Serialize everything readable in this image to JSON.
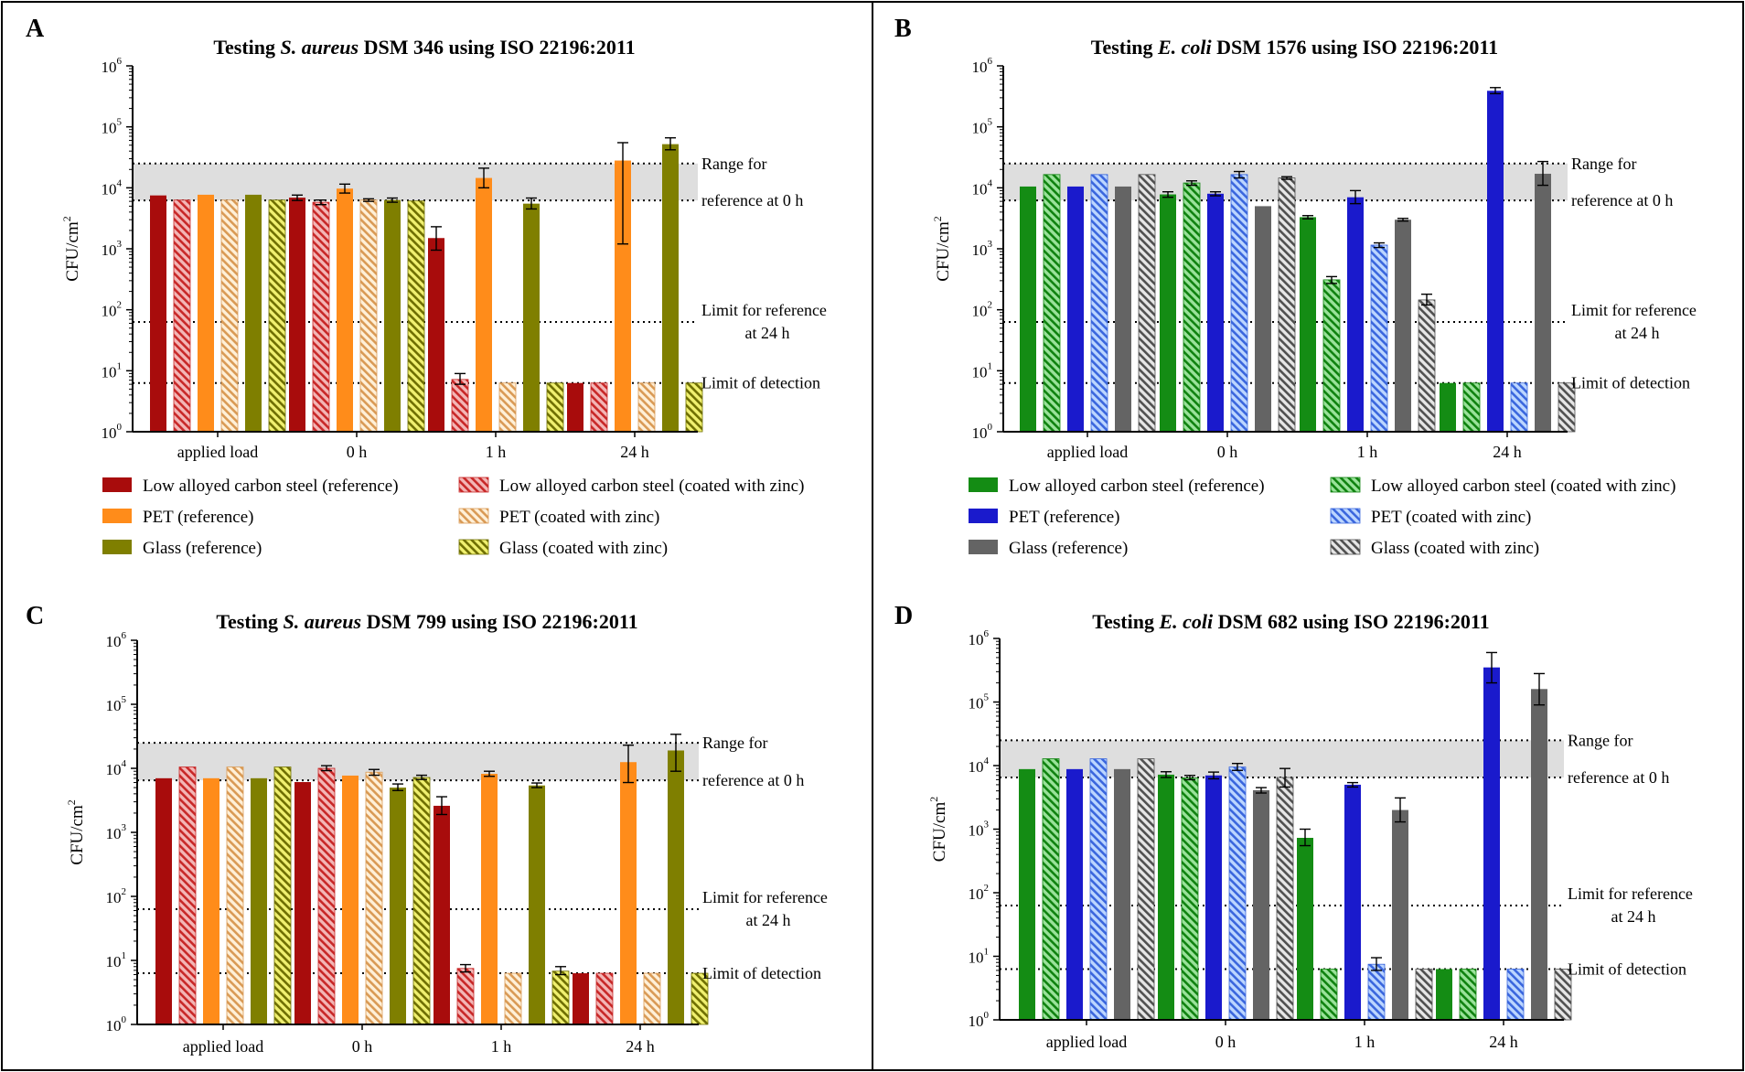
{
  "figure": {
    "colors": {
      "dark_red": "#a80c0c",
      "orange": "#ff8c1a",
      "olive": "#7f7f00",
      "green": "#148c14",
      "blue": "#1a1acc",
      "gray": "#646464",
      "range_band": "#dedede",
      "hatch_red_bg": "#f3b6b6",
      "hatch_red_fg": "#c82828",
      "hatch_orange_bg": "#fff0d8",
      "hatch_orange_fg": "#d99a55",
      "hatch_olive_bg": "#f0f070",
      "hatch_olive_fg": "#6e6e00",
      "hatch_green_bg": "#9ae29a",
      "hatch_green_fg": "#0f820f",
      "hatch_blue_bg": "#bcd6ff",
      "hatch_blue_fg": "#3a66dd",
      "hatch_gray_bg": "#e6e6e6",
      "hatch_gray_fg": "#505050"
    }
  },
  "chart_data": [
    {
      "panel_label": "A",
      "type": "bar",
      "y_scale": "log",
      "title_prefix": "Testing ",
      "title_organism": "S. aureus",
      "title_suffix": " DSM 346 using ISO 22196:2011",
      "ylabel_main": "CFU/cm",
      "ylabel_sup": "2",
      "ylim": [
        1,
        1000000
      ],
      "y_ticks": [
        {
          "base": "10",
          "exp": "0"
        },
        {
          "base": "10",
          "exp": "1"
        },
        {
          "base": "10",
          "exp": "2"
        },
        {
          "base": "10",
          "exp": "3"
        },
        {
          "base": "10",
          "exp": "4"
        },
        {
          "base": "10",
          "exp": "5"
        },
        {
          "base": "10",
          "exp": "6"
        }
      ],
      "categories": [
        "applied load",
        "0 h",
        "1 h",
        "24 h"
      ],
      "reference_range": [
        6200,
        25000
      ],
      "reference_range_label_1": "Range for",
      "reference_range_label_2": "reference at 0 h",
      "limit_reference_24h": 63,
      "limit_reference_24h_label_1": "Limit for reference",
      "limit_reference_24h_label_2": "at 24 h",
      "limit_detection": 6.3,
      "limit_detection_label": "Limit of detection",
      "series": [
        {
          "name": "Low alloyed carbon steel (reference)",
          "style": "solid",
          "color": "dark_red",
          "values": [
            7500,
            6900,
            1500,
            6.3
          ],
          "errors": [
            null,
            [
              6200,
              7600
            ],
            [
              950,
              2300
            ],
            null
          ]
        },
        {
          "name": "Low alloyed carbon steel (coated with zinc)",
          "style": "hatch",
          "color": "red",
          "values": [
            6300,
            5800,
            7.2,
            6.3
          ],
          "errors": [
            null,
            [
              5300,
              6300
            ],
            [
              6,
              9
            ],
            null
          ]
        },
        {
          "name": "PET (reference)",
          "style": "solid",
          "color": "orange",
          "values": [
            7700,
            9700,
            14500,
            28000
          ],
          "errors": [
            null,
            [
              8200,
              11500
            ],
            [
              10000,
              21000
            ],
            [
              1200,
              55000
            ]
          ]
        },
        {
          "name": "PET (coated with zinc)",
          "style": "hatch",
          "color": "orange",
          "values": [
            6300,
            6300,
            6.3,
            6.3
          ],
          "errors": [
            null,
            [
              6000,
              6600
            ],
            null,
            null
          ]
        },
        {
          "name": "Glass (reference)",
          "style": "solid",
          "color": "olive",
          "values": [
            7700,
            6300,
            5500,
            52000
          ],
          "errors": [
            null,
            [
              5800,
              6800
            ],
            [
              4500,
              6800
            ],
            [
              42000,
              66000
            ]
          ]
        },
        {
          "name": "Glass (coated with zinc)",
          "style": "hatch",
          "color": "olive",
          "values": [
            6300,
            6100,
            6.3,
            6.3
          ],
          "errors": [
            null,
            null,
            null,
            null
          ]
        }
      ]
    },
    {
      "panel_label": "B",
      "type": "bar",
      "y_scale": "log",
      "title_prefix": "Testing ",
      "title_organism": "E. coli",
      "title_suffix": " DSM 1576 using ISO 22196:2011",
      "ylabel_main": "CFU/cm",
      "ylabel_sup": "2",
      "ylim": [
        1,
        1000000
      ],
      "y_ticks": [
        {
          "base": "10",
          "exp": "0"
        },
        {
          "base": "10",
          "exp": "1"
        },
        {
          "base": "10",
          "exp": "2"
        },
        {
          "base": "10",
          "exp": "3"
        },
        {
          "base": "10",
          "exp": "4"
        },
        {
          "base": "10",
          "exp": "5"
        },
        {
          "base": "10",
          "exp": "6"
        }
      ],
      "categories": [
        "applied load",
        "0 h",
        "1 h",
        "24 h"
      ],
      "reference_range": [
        6200,
        25000
      ],
      "reference_range_label_1": "Range for",
      "reference_range_label_2": "reference at 0 h",
      "limit_reference_24h": 63,
      "limit_reference_24h_label_1": "Limit for reference",
      "limit_reference_24h_label_2": "at 24 h",
      "limit_detection": 6.3,
      "limit_detection_label": "Limit of detection",
      "series": [
        {
          "name": "Low alloyed carbon steel (reference)",
          "style": "solid",
          "color": "green",
          "values": [
            10500,
            7800,
            3300,
            6.3
          ],
          "errors": [
            null,
            [
              7000,
              8600
            ],
            [
              3100,
              3500
            ],
            null
          ]
        },
        {
          "name": "Low alloyed carbon steel (coated with zinc)",
          "style": "hatch",
          "color": "green",
          "values": [
            16500,
            12000,
            310,
            6.3
          ],
          "errors": [
            null,
            [
              11000,
              13000
            ],
            [
              270,
              350
            ],
            null
          ]
        },
        {
          "name": "PET (reference)",
          "style": "solid",
          "color": "blue",
          "values": [
            10500,
            8000,
            7000,
            390000
          ],
          "errors": [
            null,
            [
              7400,
              8600
            ],
            [
              5500,
              9000
            ],
            [
              350000,
              440000
            ]
          ]
        },
        {
          "name": "PET (coated with zinc)",
          "style": "hatch",
          "color": "blue",
          "values": [
            16500,
            16500,
            1150,
            6.3
          ],
          "errors": [
            null,
            [
              14500,
              18500
            ],
            [
              1050,
              1250
            ],
            null
          ]
        },
        {
          "name": "Glass (reference)",
          "style": "solid",
          "color": "gray",
          "values": [
            10500,
            5000,
            3000,
            17000
          ],
          "errors": [
            null,
            null,
            [
              2850,
              3150
            ],
            [
              11000,
              27000
            ]
          ]
        },
        {
          "name": "Glass (coated with zinc)",
          "style": "hatch",
          "color": "gray",
          "values": [
            16500,
            14500,
            145,
            6.3
          ],
          "errors": [
            null,
            [
              13800,
              15200
            ],
            [
              120,
              180
            ],
            null
          ]
        }
      ]
    },
    {
      "panel_label": "C",
      "type": "bar",
      "y_scale": "log",
      "title_prefix": "Testing ",
      "title_organism": "S. aureus",
      "title_suffix": " DSM 799 using ISO 22196:2011",
      "ylabel_main": "CFU/cm",
      "ylabel_sup": "2",
      "ylim": [
        1,
        1000000
      ],
      "y_ticks": [
        {
          "base": "10",
          "exp": "0"
        },
        {
          "base": "10",
          "exp": "1"
        },
        {
          "base": "10",
          "exp": "2"
        },
        {
          "base": "10",
          "exp": "3"
        },
        {
          "base": "10",
          "exp": "4"
        },
        {
          "base": "10",
          "exp": "5"
        },
        {
          "base": "10",
          "exp": "6"
        }
      ],
      "categories": [
        "applied load",
        "0 h",
        "1 h",
        "24 h"
      ],
      "reference_range": [
        6500,
        25000
      ],
      "reference_range_label_1": "Range for",
      "reference_range_label_2": "reference at 0 h",
      "limit_reference_24h": 63,
      "limit_reference_24h_label_1": "Limit for reference",
      "limit_reference_24h_label_2": "at 24 h",
      "limit_detection": 6.3,
      "limit_detection_label": "Limit of detection",
      "series": [
        {
          "name": "Low alloyed carbon steel (reference)",
          "style": "solid",
          "color": "dark_red",
          "values": [
            7000,
            6100,
            2600,
            6.3
          ],
          "errors": [
            null,
            null,
            [
              1900,
              3600
            ],
            null
          ]
        },
        {
          "name": "Low alloyed carbon steel (coated with zinc)",
          "style": "hatch",
          "color": "red",
          "values": [
            10500,
            10000,
            7.5,
            6.3
          ],
          "errors": [
            null,
            [
              9200,
              11000
            ],
            [
              6.6,
              8.6
            ],
            null
          ]
        },
        {
          "name": "PET (reference)",
          "style": "solid",
          "color": "orange",
          "values": [
            7000,
            7700,
            8200,
            12500
          ],
          "errors": [
            null,
            null,
            [
              7500,
              9000
            ],
            [
              6000,
              23000
            ]
          ]
        },
        {
          "name": "PET (coated with zinc)",
          "style": "hatch",
          "color": "orange",
          "values": [
            10500,
            8700,
            6.3,
            6.3
          ],
          "errors": [
            null,
            [
              7800,
              9600
            ],
            null,
            null
          ]
        },
        {
          "name": "Glass (reference)",
          "style": "solid",
          "color": "olive",
          "values": [
            7000,
            5000,
            5400,
            19000
          ],
          "errors": [
            null,
            [
              4500,
              5700
            ],
            [
              5000,
              5900
            ],
            [
              9000,
              34000
            ]
          ]
        },
        {
          "name": "Glass (coated with zinc)",
          "style": "hatch",
          "color": "olive",
          "values": [
            10500,
            7200,
            6.8,
            6.3
          ],
          "errors": [
            null,
            [
              6700,
              7800
            ],
            [
              6,
              8
            ],
            null
          ]
        }
      ]
    },
    {
      "panel_label": "D",
      "type": "bar",
      "y_scale": "log",
      "title_prefix": "Testing ",
      "title_organism": "E. coli",
      "title_suffix": " DSM 682 using ISO 22196:2011",
      "ylabel_main": "CFU/cm",
      "ylabel_sup": "2",
      "ylim": [
        1,
        1000000
      ],
      "y_ticks": [
        {
          "base": "10",
          "exp": "0"
        },
        {
          "base": "10",
          "exp": "1"
        },
        {
          "base": "10",
          "exp": "2"
        },
        {
          "base": "10",
          "exp": "3"
        },
        {
          "base": "10",
          "exp": "4"
        },
        {
          "base": "10",
          "exp": "5"
        },
        {
          "base": "10",
          "exp": "6"
        }
      ],
      "categories": [
        "applied load",
        "0 h",
        "1 h",
        "24 h"
      ],
      "reference_range": [
        6500,
        25000
      ],
      "reference_range_label_1": "Range for",
      "reference_range_label_2": "reference at 0 h",
      "limit_reference_24h": 63,
      "limit_reference_24h_label_1": "Limit for reference",
      "limit_reference_24h_label_2": "at 24 h",
      "limit_detection": 6.3,
      "limit_detection_label": "Limit of detection",
      "series": [
        {
          "name": "Low alloyed carbon steel (reference)",
          "style": "solid",
          "color": "green",
          "values": [
            8800,
            7200,
            730,
            6.3
          ],
          "errors": [
            null,
            [
              6500,
              8000
            ],
            [
              550,
              1000
            ],
            null
          ]
        },
        {
          "name": "Low alloyed carbon steel (coated with zinc)",
          "style": "hatch",
          "color": "green",
          "values": [
            12800,
            6400,
            6.3,
            6.3
          ],
          "errors": [
            null,
            [
              6000,
              7000
            ],
            null,
            null
          ]
        },
        {
          "name": "PET (reference)",
          "style": "solid",
          "color": "blue",
          "values": [
            8800,
            7000,
            5000,
            350000
          ],
          "errors": [
            null,
            [
              6200,
              7900
            ],
            [
              4600,
              5400
            ],
            [
              200000,
              600000
            ]
          ]
        },
        {
          "name": "PET (coated with zinc)",
          "style": "hatch",
          "color": "blue",
          "values": [
            12800,
            9500,
            7.5,
            6.3
          ],
          "errors": [
            null,
            [
              8400,
              10800
            ],
            [
              6,
              9.5
            ],
            null
          ]
        },
        {
          "name": "Glass (reference)",
          "style": "solid",
          "color": "gray",
          "values": [
            8800,
            4100,
            2000,
            160000
          ],
          "errors": [
            null,
            [
              3700,
              4500
            ],
            [
              1300,
              3100
            ],
            [
              90000,
              280000
            ]
          ]
        },
        {
          "name": "Glass (coated with zinc)",
          "style": "hatch",
          "color": "gray",
          "values": [
            12800,
            6500,
            6.3,
            6.3
          ],
          "errors": [
            null,
            [
              4600,
              9000
            ],
            null,
            null
          ]
        }
      ]
    }
  ]
}
